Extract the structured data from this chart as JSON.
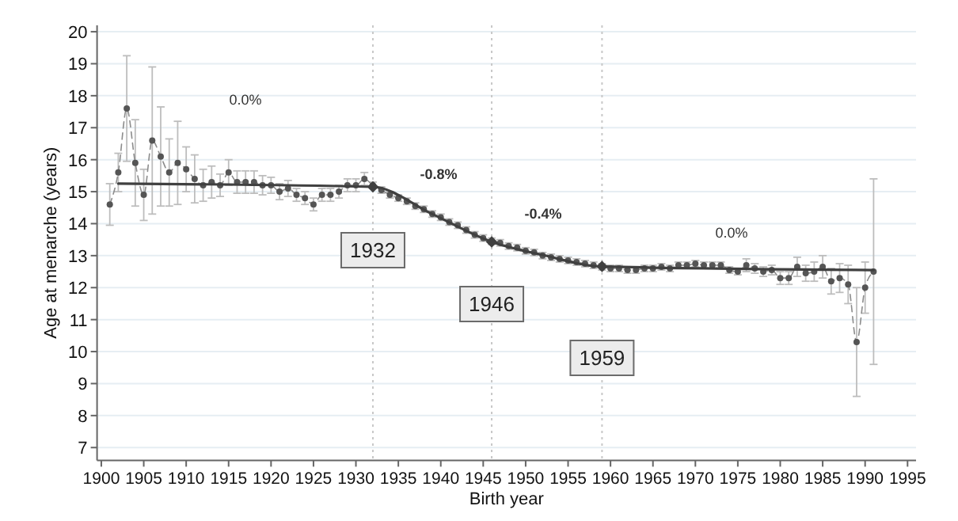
{
  "chart_data": {
    "type": "line",
    "xlabel": "Birth year",
    "ylabel": "Age at menarche (years)",
    "xlim": [
      1899.5,
      1996
    ],
    "ylim": [
      6.6,
      20.2
    ],
    "xticks": [
      1900,
      1905,
      1910,
      1915,
      1920,
      1925,
      1930,
      1935,
      1940,
      1945,
      1950,
      1955,
      1960,
      1965,
      1970,
      1975,
      1980,
      1985,
      1990,
      1995
    ],
    "yticks": [
      7,
      8,
      9,
      10,
      11,
      12,
      13,
      14,
      15,
      16,
      17,
      18,
      19,
      20
    ],
    "grid": "y",
    "series": [
      {
        "color": "#8c8c8c",
        "marker": "circle",
        "line_style": "dashed",
        "x": [
          1901,
          1902,
          1903,
          1904,
          1905,
          1906,
          1907,
          1908,
          1909,
          1910,
          1911,
          1912,
          1913,
          1914,
          1915,
          1916,
          1917,
          1918,
          1919,
          1920,
          1921,
          1922,
          1923,
          1924,
          1925,
          1926,
          1927,
          1928,
          1929,
          1930,
          1931,
          1932,
          1933,
          1934,
          1935,
          1936,
          1937,
          1938,
          1939,
          1940,
          1941,
          1942,
          1943,
          1944,
          1945,
          1946,
          1947,
          1948,
          1949,
          1950,
          1951,
          1952,
          1953,
          1954,
          1955,
          1956,
          1957,
          1958,
          1959,
          1960,
          1961,
          1962,
          1963,
          1964,
          1965,
          1966,
          1967,
          1968,
          1969,
          1970,
          1971,
          1972,
          1973,
          1974,
          1975,
          1976,
          1977,
          1978,
          1979,
          1980,
          1981,
          1982,
          1983,
          1984,
          1985,
          1986,
          1987,
          1988,
          1989,
          1990,
          1991
        ],
        "values": [
          14.6,
          15.6,
          17.6,
          15.9,
          14.9,
          16.6,
          16.1,
          15.6,
          15.9,
          15.7,
          15.4,
          15.2,
          15.3,
          15.2,
          15.6,
          15.3,
          15.3,
          15.3,
          15.2,
          15.2,
          15.0,
          15.1,
          14.9,
          14.8,
          14.6,
          14.9,
          14.9,
          15.0,
          15.2,
          15.2,
          15.4,
          15.2,
          15.05,
          14.9,
          14.8,
          14.7,
          14.55,
          14.45,
          14.3,
          14.2,
          14.05,
          13.95,
          13.8,
          13.65,
          13.55,
          13.45,
          13.4,
          13.3,
          13.25,
          13.15,
          13.1,
          13.0,
          12.95,
          12.9,
          12.85,
          12.8,
          12.75,
          12.7,
          12.65,
          12.6,
          12.6,
          12.55,
          12.55,
          12.6,
          12.6,
          12.65,
          12.6,
          12.7,
          12.7,
          12.75,
          12.7,
          12.7,
          12.7,
          12.55,
          12.5,
          12.7,
          12.6,
          12.5,
          12.55,
          12.3,
          12.3,
          12.65,
          12.45,
          12.5,
          12.65,
          12.2,
          12.3,
          12.1,
          10.3,
          12.0,
          12.5
        ],
        "errors": [
          0.65,
          0.6,
          1.65,
          1.35,
          0.8,
          2.3,
          1.55,
          1.05,
          1.3,
          0.7,
          0.75,
          0.5,
          0.5,
          0.35,
          0.4,
          0.35,
          0.35,
          0.35,
          0.3,
          0.25,
          0.25,
          0.25,
          0.2,
          0.2,
          0.2,
          0.2,
          0.2,
          0.2,
          0.2,
          0.2,
          0.2,
          0.1,
          0.1,
          0.1,
          0.1,
          0.1,
          0.1,
          0.1,
          0.1,
          0.1,
          0.1,
          0.1,
          0.1,
          0.1,
          0.1,
          0.1,
          0.1,
          0.1,
          0.1,
          0.1,
          0.1,
          0.1,
          0.1,
          0.1,
          0.1,
          0.1,
          0.1,
          0.1,
          0.1,
          0.1,
          0.1,
          0.1,
          0.1,
          0.1,
          0.1,
          0.1,
          0.1,
          0.1,
          0.1,
          0.1,
          0.1,
          0.1,
          0.1,
          0.1,
          0.1,
          0.2,
          0.15,
          0.15,
          0.15,
          0.2,
          0.2,
          0.3,
          0.25,
          0.3,
          0.35,
          0.4,
          0.45,
          0.6,
          1.7,
          0.8,
          2.9
        ]
      },
      {
        "color": "#404040",
        "marker": "none",
        "line_style": "solid",
        "x": [
          1902,
          1932,
          1939,
          1946,
          1952,
          1959,
          1991
        ],
        "values": [
          15.25,
          15.15,
          14.3,
          13.43,
          13.02,
          12.66,
          12.55
        ]
      },
      {
        "type": "scatter",
        "color": "#404040",
        "marker": "diamond",
        "x": [
          1932,
          1946,
          1959
        ],
        "values": [
          15.15,
          13.43,
          12.66
        ]
      }
    ],
    "ref_lines": [
      {
        "axis": "x",
        "value": 1932,
        "label": "1932",
        "color": "#c8c8c8",
        "line_style": "dotted"
      },
      {
        "axis": "x",
        "value": 1946,
        "label": "1946",
        "color": "#c8c8c8",
        "line_style": "dotted"
      },
      {
        "axis": "x",
        "value": 1959,
        "label": "1959",
        "color": "#c8c8c8",
        "line_style": "dotted"
      }
    ],
    "annotations": [
      "0.0%",
      "-0.8%",
      "-0.4%",
      "0.0%"
    ]
  }
}
